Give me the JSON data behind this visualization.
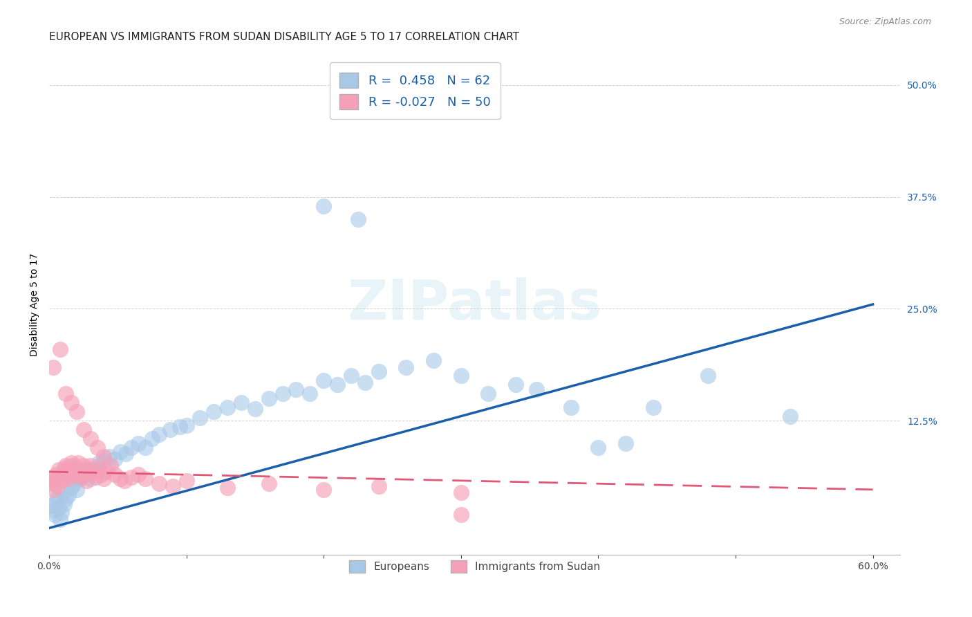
{
  "title": "EUROPEAN VS IMMIGRANTS FROM SUDAN DISABILITY AGE 5 TO 17 CORRELATION CHART",
  "source": "Source: ZipAtlas.com",
  "ylabel": "Disability Age 5 to 17",
  "xlim": [
    0.0,
    0.62
  ],
  "ylim": [
    -0.025,
    0.535
  ],
  "xtick_positions": [
    0.0,
    0.1,
    0.2,
    0.3,
    0.4,
    0.5,
    0.6
  ],
  "xtick_labels": [
    "0.0%",
    "",
    "",
    "",
    "",
    "",
    "60.0%"
  ],
  "ytick_values": [
    0.125,
    0.25,
    0.375,
    0.5
  ],
  "ytick_labels": [
    "12.5%",
    "25.0%",
    "37.5%",
    "50.0%"
  ],
  "r_european": 0.458,
  "n_european": 62,
  "r_sudan": -0.027,
  "n_sudan": 50,
  "european_color": "#a8c8e8",
  "sudan_color": "#f5a0b8",
  "trendline_european_color": "#1a5faa",
  "trendline_sudan_color": "#e05878",
  "background_color": "#ffffff",
  "grid_color": "#cccccc",
  "legend_text_color": "#1a5faa",
  "watermark": "ZIPatlas",
  "title_fontsize": 11,
  "axis_label_fontsize": 10,
  "tick_fontsize": 10,
  "legend_fontsize": 13,
  "eu_trendline": [
    0.0,
    0.005,
    0.6,
    0.255
  ],
  "su_trendline": [
    0.0,
    0.068,
    0.6,
    0.048
  ],
  "eu_points_x": [
    0.002,
    0.003,
    0.004,
    0.005,
    0.006,
    0.007,
    0.008,
    0.009,
    0.01,
    0.011,
    0.012,
    0.014,
    0.016,
    0.018,
    0.02,
    0.022,
    0.025,
    0.028,
    0.03,
    0.033,
    0.036,
    0.04,
    0.044,
    0.048,
    0.052,
    0.056,
    0.06,
    0.065,
    0.07,
    0.075,
    0.08,
    0.088,
    0.095,
    0.1,
    0.11,
    0.12,
    0.13,
    0.14,
    0.15,
    0.16,
    0.17,
    0.18,
    0.19,
    0.2,
    0.21,
    0.22,
    0.23,
    0.24,
    0.26,
    0.28,
    0.3,
    0.32,
    0.34,
    0.355,
    0.38,
    0.4,
    0.42,
    0.44,
    0.48,
    0.54,
    0.2,
    0.225
  ],
  "eu_points_y": [
    0.03,
    0.025,
    0.02,
    0.035,
    0.04,
    0.028,
    0.015,
    0.022,
    0.045,
    0.032,
    0.038,
    0.042,
    0.05,
    0.055,
    0.048,
    0.06,
    0.065,
    0.07,
    0.06,
    0.072,
    0.078,
    0.08,
    0.085,
    0.082,
    0.09,
    0.088,
    0.095,
    0.1,
    0.095,
    0.105,
    0.11,
    0.115,
    0.118,
    0.12,
    0.128,
    0.135,
    0.14,
    0.145,
    0.138,
    0.15,
    0.155,
    0.16,
    0.155,
    0.17,
    0.165,
    0.175,
    0.168,
    0.18,
    0.185,
    0.192,
    0.175,
    0.155,
    0.165,
    0.16,
    0.14,
    0.095,
    0.1,
    0.14,
    0.175,
    0.13,
    0.365,
    0.35
  ],
  "su_points_x": [
    0.001,
    0.002,
    0.003,
    0.004,
    0.005,
    0.006,
    0.007,
    0.008,
    0.009,
    0.01,
    0.011,
    0.012,
    0.013,
    0.014,
    0.015,
    0.016,
    0.017,
    0.018,
    0.019,
    0.02,
    0.021,
    0.022,
    0.023,
    0.024,
    0.025,
    0.026,
    0.027,
    0.028,
    0.03,
    0.032,
    0.034,
    0.036,
    0.038,
    0.04,
    0.042,
    0.045,
    0.048,
    0.052,
    0.055,
    0.06,
    0.065,
    0.07,
    0.08,
    0.09,
    0.1,
    0.13,
    0.16,
    0.2,
    0.24,
    0.3
  ],
  "su_points_y": [
    0.06,
    0.055,
    0.048,
    0.058,
    0.065,
    0.052,
    0.07,
    0.062,
    0.058,
    0.068,
    0.072,
    0.075,
    0.065,
    0.06,
    0.07,
    0.078,
    0.075,
    0.065,
    0.068,
    0.072,
    0.078,
    0.07,
    0.062,
    0.068,
    0.075,
    0.065,
    0.058,
    0.07,
    0.075,
    0.068,
    0.062,
    0.07,
    0.065,
    0.06,
    0.068,
    0.075,
    0.065,
    0.06,
    0.058,
    0.062,
    0.065,
    0.06,
    0.055,
    0.052,
    0.058,
    0.05,
    0.055,
    0.048,
    0.052,
    0.045
  ],
  "su_outliers_x": [
    0.003,
    0.008,
    0.012,
    0.016,
    0.02,
    0.025,
    0.03,
    0.035,
    0.04,
    0.3
  ],
  "su_outliers_y": [
    0.185,
    0.205,
    0.155,
    0.145,
    0.135,
    0.115,
    0.105,
    0.095,
    0.085,
    0.02
  ]
}
